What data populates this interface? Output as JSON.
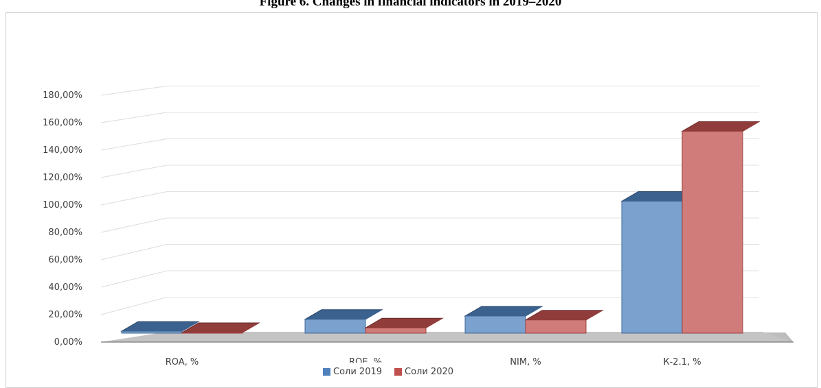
{
  "page": {
    "caption": "Figure 6. Changes in financial indicators in 2019–2020"
  },
  "chart_data": {
    "type": "bar",
    "title": "",
    "categories": [
      "ROA, %",
      "ROE, %",
      "NIM, %",
      "К-2.1, %"
    ],
    "series": [
      {
        "name": "Соли 2019",
        "color": "#4f81bd",
        "values": [
          1.5,
          10.5,
          13.0,
          100.0
        ]
      },
      {
        "name": "Соли 2020",
        "color": "#c0504d",
        "values": [
          0.5,
          4.0,
          10.0,
          153.0
        ]
      }
    ],
    "yticks": [
      "0,00%",
      "20,00%",
      "40,00%",
      "60,00%",
      "80,00%",
      "100,00%",
      "120,00%",
      "140,00%",
      "160,00%",
      "180,00%"
    ],
    "ylim": [
      0,
      180
    ],
    "grid": true,
    "legend_position": "bottom"
  }
}
